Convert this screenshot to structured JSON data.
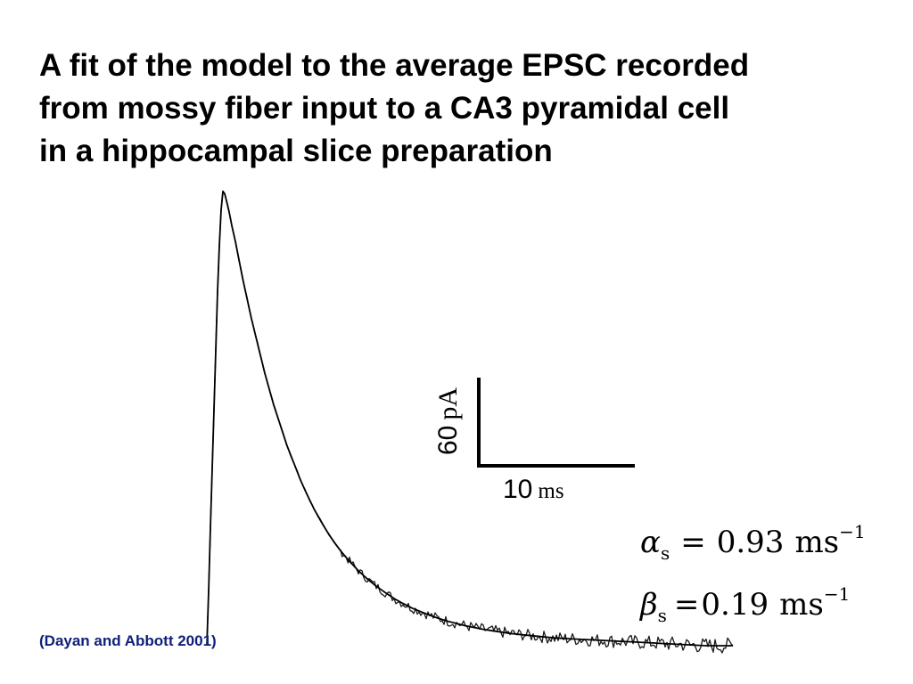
{
  "slide": {
    "title_lines": [
      "A fit of the model to the average EPSC recorded",
      "from mossy fiber input to a CA3 pyramidal cell",
      "in a hippocampal slice preparation"
    ],
    "citation": "(Dayan and Abbott 2001)"
  },
  "figure": {
    "scale_bar": {
      "vertical_value": "60",
      "vertical_unit": "pA",
      "horizontal_value": "10",
      "horizontal_unit": "ms"
    },
    "equations": [
      {
        "symbol": "α",
        "subscript": "s",
        "relation": "=",
        "value": "0.93",
        "unit": "ms",
        "exponent": "−1"
      },
      {
        "symbol": "β",
        "subscript": "s",
        "relation": "=",
        "value": "0.19",
        "unit": "ms",
        "exponent": "−1"
      }
    ]
  },
  "chart_data": {
    "type": "line",
    "series": [
      {
        "x": [
          0,
          1,
          2,
          3,
          4,
          6,
          8,
          10,
          12,
          14,
          16,
          18,
          20,
          22,
          25,
          28,
          32,
          36,
          40,
          45,
          50,
          55,
          60,
          65,
          70,
          75,
          80,
          85,
          90,
          95,
          100,
          105,
          110,
          115,
          120,
          125,
          130,
          135,
          140,
          145,
          150,
          155,
          160,
          170,
          180,
          190,
          200,
          210,
          220,
          230,
          240,
          250,
          260,
          270,
          280,
          290,
          300,
          310,
          320,
          330,
          340,
          350,
          360,
          370,
          380,
          390,
          400,
          410,
          420,
          430,
          440,
          450,
          460,
          470,
          480,
          490,
          500,
          510,
          520,
          530,
          540,
          550,
          560,
          570,
          580,
          590
        ],
        "values": [
          0,
          0.06,
          0.12,
          0.19,
          0.26,
          0.39,
          0.52,
          0.65,
          0.78,
          0.88,
          0.96,
          1.0,
          0.995,
          0.98,
          0.955,
          0.925,
          0.89,
          0.85,
          0.81,
          0.765,
          0.72,
          0.68,
          0.64,
          0.6,
          0.565,
          0.53,
          0.5,
          0.47,
          0.44,
          0.415,
          0.39,
          0.365,
          0.343,
          0.322,
          0.302,
          0.284,
          0.267,
          0.251,
          0.236,
          0.222,
          0.209,
          0.197,
          0.186,
          0.165,
          0.147,
          0.131,
          0.117,
          0.104,
          0.093,
          0.083,
          0.075,
          0.067,
          0.06,
          0.054,
          0.049,
          0.044,
          0.04,
          0.036,
          0.033,
          0.03,
          0.027,
          0.025,
          0.023,
          0.021,
          0.019,
          0.017,
          0.016,
          0.015,
          0.014,
          0.013,
          0.012,
          0.011,
          0.01,
          0.009,
          0.008,
          0.007,
          0.006,
          0.005,
          0.004,
          0.003,
          0.002,
          0.001,
          0.0,
          0.0,
          0.0,
          0.0
        ]
      }
    ],
    "grid": false,
    "legend": "none"
  }
}
